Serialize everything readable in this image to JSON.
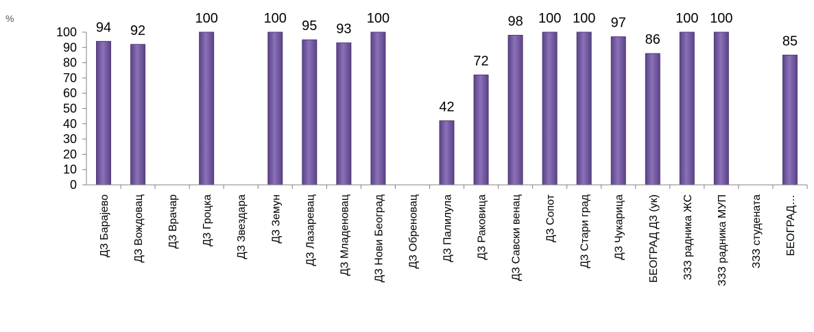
{
  "chart_data": {
    "type": "bar",
    "unit_label": "%",
    "categories": [
      "ДЗ Барајево",
      "ДЗ Вождовац",
      "ДЗ Врачар",
      "ДЗ Гроцка",
      "ДЗ Звездара",
      "ДЗ Земун",
      "ДЗ Лазаревац",
      "ДЗ Младеновац",
      "ДЗ Нови Београд",
      "ДЗ Обреновац",
      "ДЗ Палилула",
      "ДЗ Раковица",
      "ДЗ Савски венац",
      "ДЗ Сопот",
      "ДЗ Стари град",
      "ДЗ Чукарица",
      "БЕОГРАД ДЗ (ук)",
      "ЗЗЗ радника ЖС",
      "ЗЗЗ радника МУП",
      "ЗЗЗ студената",
      "БЕОГРАД…"
    ],
    "values": [
      94,
      92,
      null,
      100,
      null,
      100,
      95,
      93,
      100,
      null,
      42,
      72,
      98,
      100,
      100,
      97,
      86,
      100,
      100,
      null,
      85
    ],
    "data_labels": [
      "94",
      "92",
      "",
      "100",
      "",
      "100",
      "95",
      "93",
      "100",
      "",
      "42",
      "72",
      "98",
      "100",
      "100",
      "97",
      "86",
      "100",
      "100",
      "",
      "85"
    ],
    "ylim": [
      0,
      100
    ],
    "yticks": [
      0,
      10,
      20,
      30,
      40,
      50,
      60,
      70,
      80,
      90,
      100
    ],
    "title": "",
    "xlabel": "",
    "ylabel": "",
    "grid": false,
    "legend": "none",
    "bar_color": "#7a5fa6",
    "bar_edge_color": "#4e3a75",
    "axis_color": "#808080"
  }
}
